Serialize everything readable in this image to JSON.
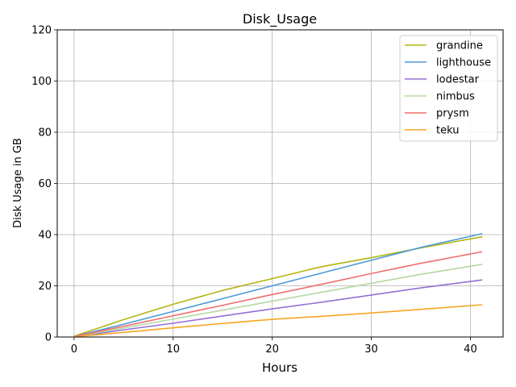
{
  "chart_data": {
    "type": "line",
    "title": "Disk_Usage",
    "xlabel": "Hours",
    "ylabel": "Disk Usage in GB",
    "xlim": [
      -1.7,
      43.3
    ],
    "ylim": [
      0,
      120
    ],
    "xticks": [
      0,
      10,
      20,
      30,
      40
    ],
    "yticks": [
      0,
      20,
      40,
      60,
      80,
      100,
      120
    ],
    "grid": true,
    "legend": "top-right",
    "x": [
      0,
      5,
      10,
      15,
      20,
      25,
      30,
      35,
      41.2
    ],
    "series": [
      {
        "name": "grandine",
        "color": "#b5b412",
        "values": [
          0.3,
          6.8,
          12.8,
          18.2,
          22.8,
          27.5,
          31.0,
          34.8,
          39.2
        ]
      },
      {
        "name": "lighthouse",
        "color": "#4a9ad8",
        "values": [
          0.2,
          5.0,
          10.0,
          15.0,
          20.0,
          25.0,
          30.0,
          35.0,
          40.4
        ]
      },
      {
        "name": "lodestar",
        "color": "#9370d2",
        "values": [
          0.1,
          2.8,
          5.4,
          8.2,
          11.0,
          13.6,
          16.4,
          19.2,
          22.3
        ]
      },
      {
        "name": "nimbus",
        "color": "#b4d8a2",
        "values": [
          0.1,
          3.5,
          7.0,
          10.5,
          14.0,
          17.5,
          21.0,
          24.5,
          28.4
        ]
      },
      {
        "name": "prysm",
        "color": "#f06e6e",
        "values": [
          0.2,
          4.2,
          8.3,
          12.4,
          16.6,
          20.6,
          24.8,
          28.8,
          33.3
        ]
      },
      {
        "name": "teku",
        "color": "#f5a623",
        "values": [
          0.1,
          1.8,
          3.6,
          5.3,
          6.9,
          8.1,
          9.4,
          10.8,
          12.6
        ]
      }
    ]
  }
}
